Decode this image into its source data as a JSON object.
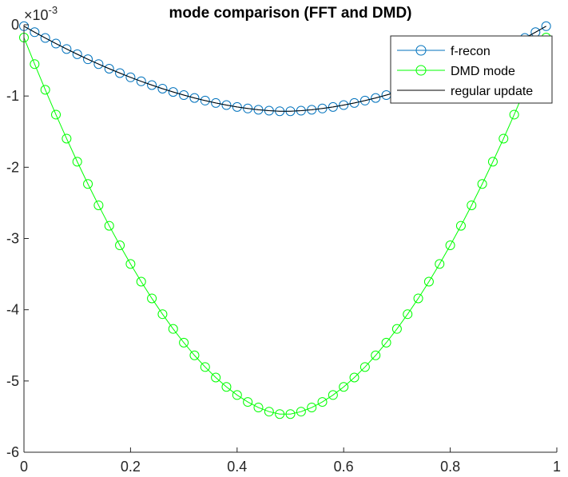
{
  "chart_data": {
    "type": "line",
    "title": "mode comparison (FFT and DMD)",
    "xlabel": "",
    "ylabel": "",
    "xlim": [
      0,
      1
    ],
    "ylim": [
      -6,
      0
    ],
    "y_exponent_label": "×10",
    "y_exponent_power": "-3",
    "x_ticks": [
      0,
      0.2,
      0.4,
      0.6,
      0.8,
      1
    ],
    "x_tick_labels": [
      "0",
      "0.2",
      "0.4",
      "0.6",
      "0.8",
      "1"
    ],
    "y_ticks": [
      0,
      -1,
      -2,
      -3,
      -4,
      -5,
      -6
    ],
    "y_tick_labels": [
      "0",
      "-1",
      "-2",
      "-3",
      "-4",
      "-5",
      "-6"
    ],
    "grid": false,
    "legend_position": "top-right",
    "series": [
      {
        "name": "f-recon",
        "color": "#0072BD",
        "marker": "circle",
        "x_start": 0,
        "x_end": 0.98,
        "point_count": 50,
        "y_min": -1.215,
        "y_at_x0": -0.02,
        "y_at_xend": -0.02
      },
      {
        "name": "DMD mode",
        "color": "#00FF00",
        "marker": "circle",
        "x_start": 0,
        "x_end": 0.98,
        "point_count": 50,
        "y_min": -5.47,
        "y_at_x0": -0.18,
        "y_at_xend": -0.18
      },
      {
        "name": "regular update",
        "color": "#000000",
        "marker": "none",
        "x_start": 0,
        "x_end": 0.98,
        "point_count": 50,
        "y_min": -1.215,
        "y_at_x0": -0.02,
        "y_at_xend": -0.02
      }
    ]
  }
}
